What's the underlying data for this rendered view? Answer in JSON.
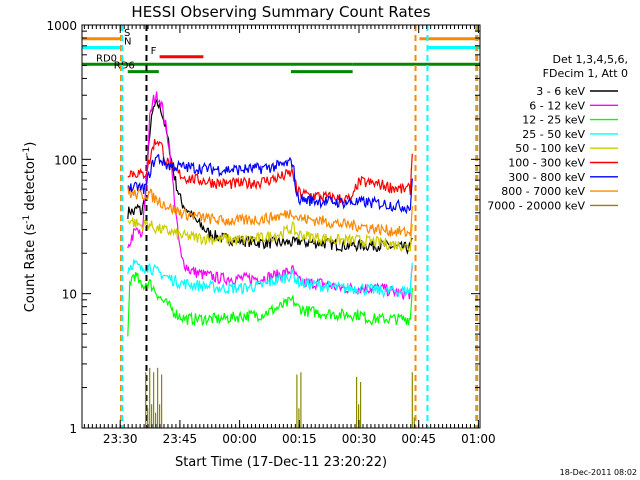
{
  "chart_data": {
    "type": "line",
    "title": "HESSI Observing Summary Count Rates",
    "xlabel": "Start Time (17-Dec-11 23:20:22)",
    "ylabel_main": "Count Rate (s",
    "ylabel_sup1": "-1",
    "ylabel_mid": " detector",
    "ylabel_sup2": "-1",
    "ylabel_end": ")",
    "y_scale": "log",
    "ylim": [
      1,
      1000
    ],
    "xlim_minutes": [
      0,
      100
    ],
    "grid": false,
    "legend_placement": "right",
    "x_ticks": [
      {
        "label": "23:30",
        "minute": 9.6
      },
      {
        "label": "23:45",
        "minute": 24.6
      },
      {
        "label": "00:00",
        "minute": 39.6
      },
      {
        "label": "00:15",
        "minute": 54.6
      },
      {
        "label": "00:30",
        "minute": 69.6
      },
      {
        "label": "00:45",
        "minute": 84.6
      },
      {
        "label": "01:00",
        "minute": 99.6
      }
    ],
    "y_ticks": [
      {
        "label": "1",
        "value": 1
      },
      {
        "label": "10",
        "value": 10
      },
      {
        "label": "100",
        "value": 100
      },
      {
        "label": "1000",
        "value": 1000
      }
    ],
    "legend_header": [
      "Det 1,3,4,5,6,",
      "FDecim 1, Att 0"
    ],
    "series": [
      {
        "name": "3 - 6 keV",
        "color": "#000000",
        "points": [
          [
            11.5,
            40
          ],
          [
            12,
            42
          ],
          [
            13,
            40
          ],
          [
            14,
            44
          ],
          [
            15,
            40
          ],
          [
            16,
            55
          ],
          [
            17,
            160
          ],
          [
            18,
            240
          ],
          [
            19,
            260
          ],
          [
            20,
            230
          ],
          [
            21,
            170
          ],
          [
            22,
            120
          ],
          [
            23,
            80
          ],
          [
            24,
            60
          ],
          [
            25,
            48
          ],
          [
            27,
            40
          ],
          [
            29,
            34
          ],
          [
            32,
            28
          ],
          [
            35,
            26
          ],
          [
            40,
            25
          ],
          [
            45,
            24
          ],
          [
            50,
            24
          ],
          [
            54,
            24
          ],
          [
            54.5,
            25
          ],
          [
            56,
            24
          ],
          [
            60,
            24
          ],
          [
            65,
            23
          ],
          [
            70,
            23
          ],
          [
            75,
            23
          ],
          [
            80,
            22
          ],
          [
            82.5,
            22
          ],
          [
            83,
            26
          ]
        ]
      },
      {
        "name": "6 - 12 keV",
        "color": "#ff00ff",
        "points": [
          [
            11.5,
            20
          ],
          [
            12,
            24
          ],
          [
            13,
            28
          ],
          [
            14,
            30
          ],
          [
            15,
            25
          ],
          [
            16,
            60
          ],
          [
            17,
            200
          ],
          [
            18,
            280
          ],
          [
            19,
            300
          ],
          [
            20,
            260
          ],
          [
            21,
            180
          ],
          [
            22,
            120
          ],
          [
            23,
            60
          ],
          [
            24,
            30
          ],
          [
            25,
            18
          ],
          [
            27,
            15
          ],
          [
            30,
            14
          ],
          [
            35,
            13
          ],
          [
            40,
            13
          ],
          [
            45,
            13
          ],
          [
            50,
            14
          ],
          [
            53,
            15
          ],
          [
            54,
            13
          ],
          [
            55,
            12
          ],
          [
            60,
            12
          ],
          [
            65,
            11
          ],
          [
            70,
            11
          ],
          [
            75,
            11
          ],
          [
            80,
            10
          ],
          [
            82.5,
            10
          ],
          [
            83,
            16
          ]
        ]
      },
      {
        "name": "12 - 25 keV",
        "color": "#00ff00",
        "points": [
          [
            11.5,
            4.5
          ],
          [
            12,
            12
          ],
          [
            13,
            14
          ],
          [
            14,
            13
          ],
          [
            15,
            11
          ],
          [
            16,
            12
          ],
          [
            17,
            12
          ],
          [
            18,
            11
          ],
          [
            19,
            10
          ],
          [
            20,
            9
          ],
          [
            22,
            8
          ],
          [
            24,
            7
          ],
          [
            26,
            6.5
          ],
          [
            30,
            6.5
          ],
          [
            35,
            6.5
          ],
          [
            40,
            6.8
          ],
          [
            45,
            7
          ],
          [
            50,
            8
          ],
          [
            53,
            9
          ],
          [
            54,
            8
          ],
          [
            56,
            7.5
          ],
          [
            60,
            7.2
          ],
          [
            65,
            7
          ],
          [
            70,
            7
          ],
          [
            72,
            6.5
          ],
          [
            75,
            6.5
          ],
          [
            80,
            6.5
          ],
          [
            82.5,
            6.5
          ],
          [
            83,
            11
          ]
        ]
      },
      {
        "name": "25 - 50 keV",
        "color": "#00ffff",
        "points": [
          [
            11.5,
            15
          ],
          [
            12,
            16
          ],
          [
            13,
            17
          ],
          [
            14,
            16
          ],
          [
            15,
            15
          ],
          [
            16,
            16
          ],
          [
            17,
            16
          ],
          [
            18,
            15
          ],
          [
            20,
            14
          ],
          [
            22,
            13
          ],
          [
            25,
            12
          ],
          [
            30,
            11.5
          ],
          [
            35,
            11
          ],
          [
            40,
            11
          ],
          [
            45,
            11.5
          ],
          [
            50,
            13
          ],
          [
            53,
            14
          ],
          [
            54,
            12.5
          ],
          [
            55,
            12
          ],
          [
            60,
            11.5
          ],
          [
            65,
            11
          ],
          [
            70,
            11
          ],
          [
            75,
            10.5
          ],
          [
            80,
            10.5
          ],
          [
            82.5,
            10.5
          ],
          [
            83,
            17
          ]
        ]
      },
      {
        "name": "50 - 100 keV",
        "color": "#cccc00",
        "points": [
          [
            11.5,
            35
          ],
          [
            12,
            36
          ],
          [
            13,
            34
          ],
          [
            14,
            33
          ],
          [
            15,
            32
          ],
          [
            16,
            33
          ],
          [
            17,
            33
          ],
          [
            18,
            31
          ],
          [
            20,
            30
          ],
          [
            22,
            29
          ],
          [
            25,
            27
          ],
          [
            30,
            26
          ],
          [
            35,
            25.5
          ],
          [
            40,
            25
          ],
          [
            45,
            26
          ],
          [
            50,
            28
          ],
          [
            53,
            31
          ],
          [
            54,
            28
          ],
          [
            56,
            27
          ],
          [
            60,
            26
          ],
          [
            65,
            25
          ],
          [
            70,
            25
          ],
          [
            75,
            24
          ],
          [
            80,
            23
          ],
          [
            82.5,
            22
          ],
          [
            83,
            33
          ]
        ]
      },
      {
        "name": "100 - 300 keV",
        "color": "#ff0000",
        "points": [
          [
            11.5,
            80
          ],
          [
            12,
            82
          ],
          [
            13,
            78
          ],
          [
            14,
            80
          ],
          [
            15,
            76
          ],
          [
            16,
            80
          ],
          [
            17,
            98
          ],
          [
            18,
            130
          ],
          [
            19,
            140
          ],
          [
            20,
            125
          ],
          [
            21,
            100
          ],
          [
            22,
            90
          ],
          [
            24,
            80
          ],
          [
            26,
            73
          ],
          [
            30,
            70
          ],
          [
            35,
            66
          ],
          [
            40,
            66
          ],
          [
            45,
            68
          ],
          [
            50,
            74
          ],
          [
            53,
            80
          ],
          [
            54,
            58
          ],
          [
            56,
            55
          ],
          [
            60,
            53
          ],
          [
            65,
            51
          ],
          [
            68,
            50
          ],
          [
            69,
            65
          ],
          [
            70,
            68
          ],
          [
            75,
            65
          ],
          [
            80,
            60
          ],
          [
            82.5,
            60
          ],
          [
            83,
            110
          ]
        ]
      },
      {
        "name": "300 - 800 keV",
        "color": "#0000ff",
        "points": [
          [
            11.5,
            65
          ],
          [
            12,
            62
          ],
          [
            13,
            60
          ],
          [
            14,
            63
          ],
          [
            15,
            60
          ],
          [
            16,
            62
          ],
          [
            17,
            80
          ],
          [
            18,
            96
          ],
          [
            19,
            104
          ],
          [
            20,
            98
          ],
          [
            21,
            92
          ],
          [
            22,
            90
          ],
          [
            25,
            88
          ],
          [
            30,
            86
          ],
          [
            35,
            84
          ],
          [
            40,
            84
          ],
          [
            45,
            86
          ],
          [
            50,
            90
          ],
          [
            53,
            96
          ],
          [
            54,
            52
          ],
          [
            56,
            50
          ],
          [
            60,
            49
          ],
          [
            65,
            48
          ],
          [
            70,
            48
          ],
          [
            75,
            47
          ],
          [
            80,
            45
          ],
          [
            82.5,
            44
          ],
          [
            83,
            72
          ]
        ]
      },
      {
        "name": "800 - 7000 keV",
        "color": "#ff8800",
        "points": [
          [
            11.5,
            58
          ],
          [
            12,
            56
          ],
          [
            13,
            55
          ],
          [
            14,
            55
          ],
          [
            15,
            54
          ],
          [
            16,
            55
          ],
          [
            17,
            56
          ],
          [
            18,
            52
          ],
          [
            20,
            48
          ],
          [
            22,
            44
          ],
          [
            25,
            40
          ],
          [
            30,
            37
          ],
          [
            35,
            35
          ],
          [
            40,
            35
          ],
          [
            45,
            36
          ],
          [
            50,
            38
          ],
          [
            53,
            41
          ],
          [
            54,
            37
          ],
          [
            56,
            36
          ],
          [
            60,
            35
          ],
          [
            65,
            33
          ],
          [
            70,
            32
          ],
          [
            75,
            30
          ],
          [
            80,
            29
          ],
          [
            82.5,
            28
          ],
          [
            83,
            45
          ]
        ]
      },
      {
        "name": "7000 - 20000 keV",
        "color": "#888800",
        "points": [
          [
            16,
            2.6
          ],
          [
            16.5,
            1.4
          ],
          [
            17,
            2.8
          ],
          [
            17.5,
            1.5
          ],
          [
            18,
            2.6
          ],
          [
            18.5,
            1.3
          ],
          [
            19,
            2.8
          ],
          [
            19.5,
            1.5
          ],
          [
            20,
            2.5
          ],
          [
            54,
            2.5
          ],
          [
            54.5,
            1.4
          ],
          [
            55,
            2.6
          ],
          [
            69,
            2.4
          ],
          [
            69.5,
            1.5
          ],
          [
            70,
            2.2
          ],
          [
            83,
            2.6
          ],
          [
            83.5,
            1.2
          ]
        ]
      }
    ],
    "state_bars": [
      {
        "label": "S",
        "color": "#ff8800",
        "value": 790,
        "segments": [
          [
            0,
            9.8
          ],
          [
            84.8,
            100
          ]
        ]
      },
      {
        "label": "N",
        "color": "#00ffff",
        "value": 680,
        "segments": [
          [
            0,
            9.8
          ],
          [
            87,
            100
          ]
        ]
      },
      {
        "label": "F",
        "color": "#ff0000",
        "value": 580,
        "segments": [
          [
            19.5,
            30.5
          ]
        ]
      },
      {
        "label": "RD0",
        "color": "#008800",
        "value": 510,
        "segments": [
          [
            0,
            9.8
          ],
          [
            9.8,
            52.5
          ],
          [
            52.5,
            68
          ],
          [
            68,
            100
          ]
        ]
      },
      {
        "label": "RD6",
        "color": "#008800",
        "value": 450,
        "segments": [
          [
            11.5,
            19.3
          ],
          [
            52.5,
            68
          ]
        ]
      }
    ],
    "event_lines": [
      {
        "minute": 9.8,
        "color": "#ff8800"
      },
      {
        "minute": 10.1,
        "color": "#00ffff"
      },
      {
        "minute": 16.2,
        "color": "#000000"
      },
      {
        "minute": 83.8,
        "color": "#ff8800"
      },
      {
        "minute": 86.8,
        "color": "#00ffff"
      },
      {
        "minute": 99.0,
        "color": "#00ffff"
      },
      {
        "minute": 99.3,
        "color": "#ff8800"
      }
    ],
    "timestamp": "18-Dec-2011 08:02"
  }
}
